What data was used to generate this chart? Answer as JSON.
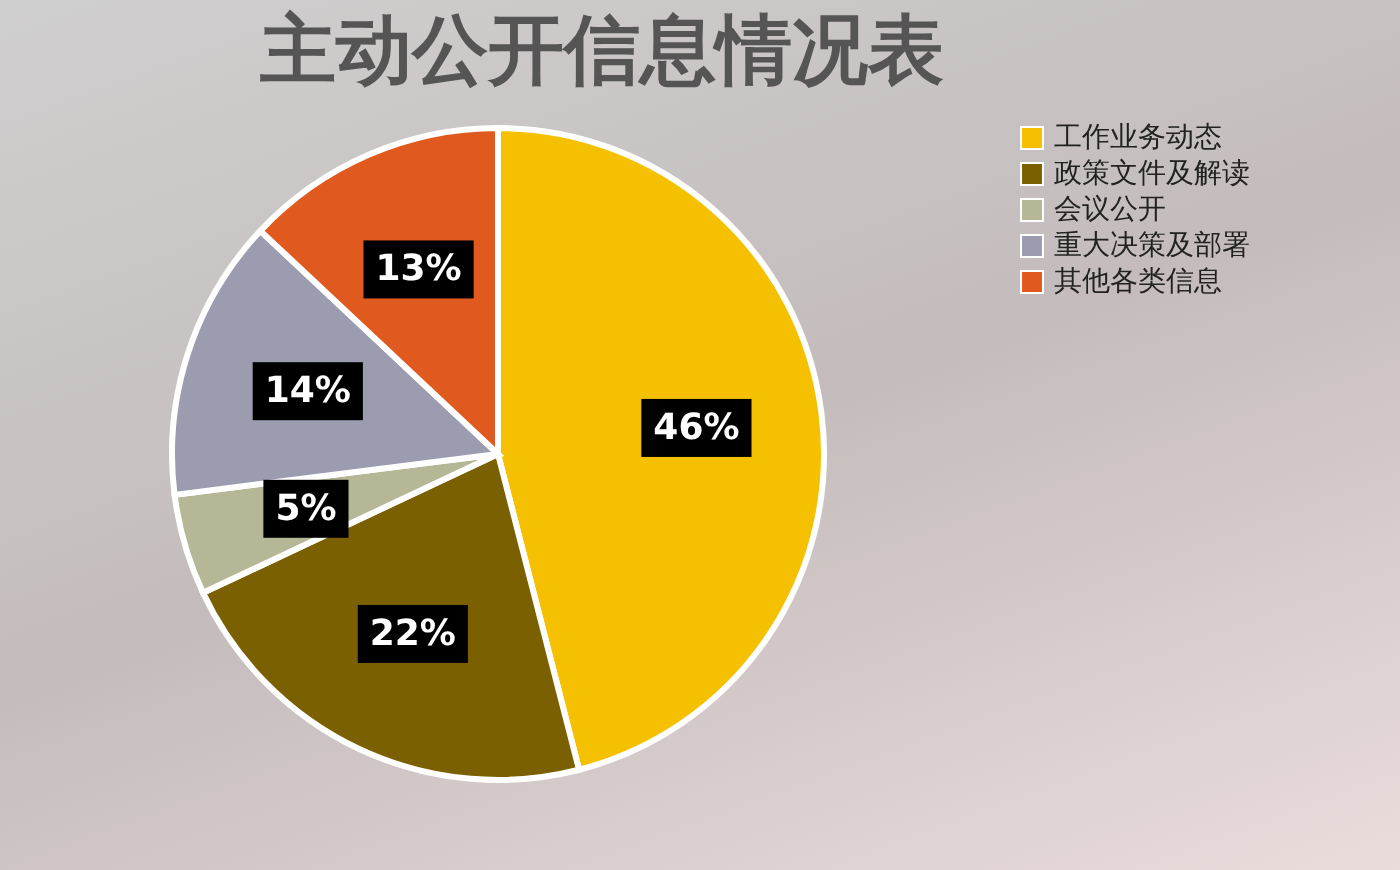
{
  "chart_data": {
    "type": "pie",
    "title": "主动公开信息情况表",
    "categories": [
      "工作业务动态",
      "政策文件及解读",
      "会议公开",
      "重大决策及部署",
      "其他各类信息"
    ],
    "values": [
      46,
      22,
      5,
      14,
      13
    ],
    "value_labels": [
      "46%",
      "22%",
      "5%",
      "14%",
      "13%"
    ],
    "colors": [
      "#f5c000",
      "#7a6000",
      "#b5b797",
      "#9c9cb0",
      "#e05a20"
    ],
    "legend": "right"
  }
}
